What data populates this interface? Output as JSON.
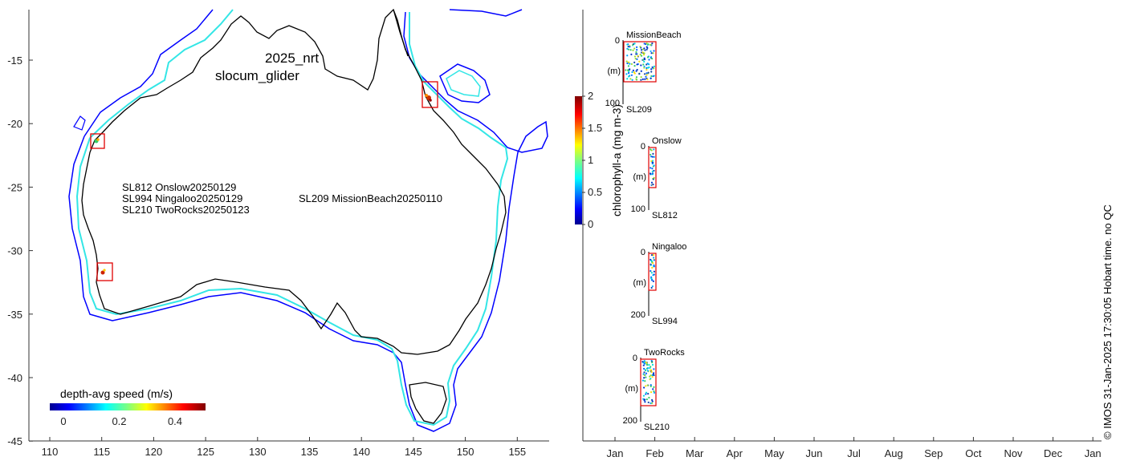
{
  "map": {
    "title_line1": "2025_nrt",
    "title_line2": "slocum_glider",
    "lon_ticks": [
      "110",
      "115",
      "120",
      "125",
      "130",
      "135",
      "140",
      "145",
      "150",
      "155"
    ],
    "lat_ticks": [
      "-15",
      "-20",
      "-25",
      "-30",
      "-35",
      "-40",
      "-45"
    ],
    "deployment_labels": [
      "SL812 Onslow20250129",
      "SL994 Ningaloo20250129",
      "SL210 TwoRocks20250123",
      "SL209 MissionBeach20250110"
    ],
    "speed_colorbar": {
      "label": "depth-avg speed (m/s)",
      "ticks": [
        "0",
        "0.2",
        "0.4"
      ],
      "range": [
        0,
        0.5
      ]
    },
    "colors": {
      "coastline": "#000000",
      "isobath_shallow": "#33e6e6",
      "isobath_deep": "#0000ff",
      "deployment_box": "#e00000"
    }
  },
  "chl_colorbar": {
    "label": "chlorophyll-a (mg m-3)",
    "ticks": [
      "0",
      "0.5",
      "1",
      "1.5",
      "2"
    ],
    "range": [
      0,
      2
    ]
  },
  "timeline": {
    "months": [
      "Jan",
      "Feb",
      "Mar",
      "Apr",
      "May",
      "Jun",
      "Jul",
      "Aug",
      "Sep",
      "Oct",
      "Nov",
      "Dec",
      "Jan"
    ],
    "panels": [
      {
        "site": "MissionBeach",
        "glider": "SL209",
        "depth_top": "0",
        "depth_bottom": "100",
        "unit": "(m)"
      },
      {
        "site": "Onslow",
        "glider": "SL812",
        "depth_top": "0",
        "depth_bottom": "100",
        "unit": "(m)"
      },
      {
        "site": "Ningaloo",
        "glider": "SL994",
        "depth_top": "0",
        "depth_bottom": "200",
        "unit": "(m)"
      },
      {
        "site": "TwoRocks",
        "glider": "SL210",
        "depth_top": "0",
        "depth_bottom": "200",
        "unit": "(m)"
      }
    ]
  },
  "credit": "© IMOS 31-Jan-2025 17:30:05 Hobart time. no QC"
}
